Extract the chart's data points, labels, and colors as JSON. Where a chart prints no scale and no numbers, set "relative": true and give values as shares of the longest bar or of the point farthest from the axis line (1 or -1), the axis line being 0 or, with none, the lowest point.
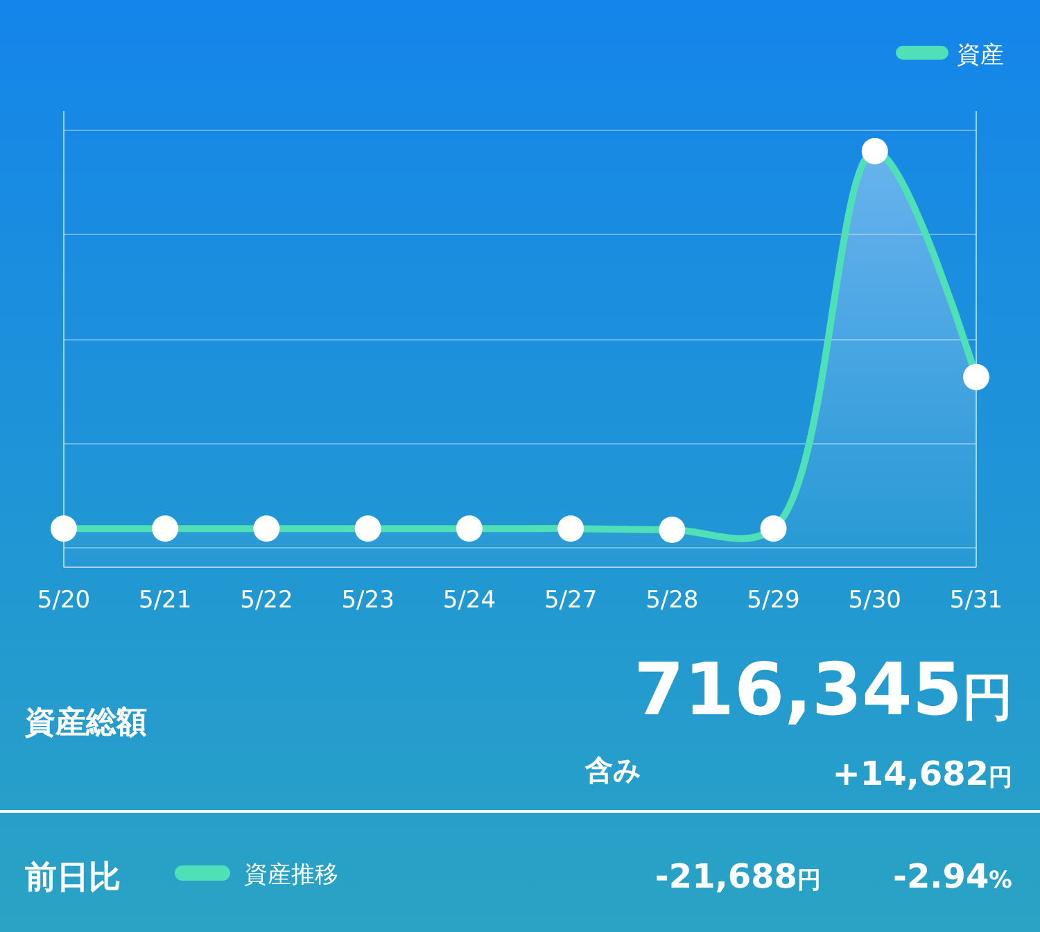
{
  "chart_data": [
    {
      "type": "area",
      "relative": true,
      "categories": [
        "5/20",
        "5/21",
        "5/22",
        "5/23",
        "5/24",
        "5/27",
        "5/28",
        "5/29",
        "5/30",
        "5/31"
      ],
      "series": [
        {
          "name": "資産",
          "color": "#4fe0b8",
          "values": [
            0.093,
            0.093,
            0.093,
            0.093,
            0.093,
            0.093,
            0.09,
            0.093,
            1,
            0.457
          ]
        }
      ],
      "grid": "y",
      "legend": "top right",
      "marker": "circle",
      "line_style": "solid"
    },
    {
      "type": "other",
      "annotations": [
        "資産総額",
        "716,345円",
        "含み",
        "+14,682円",
        "前日比",
        "資産推移",
        "-21,688円",
        "-2.94%"
      ]
    }
  ]
}
